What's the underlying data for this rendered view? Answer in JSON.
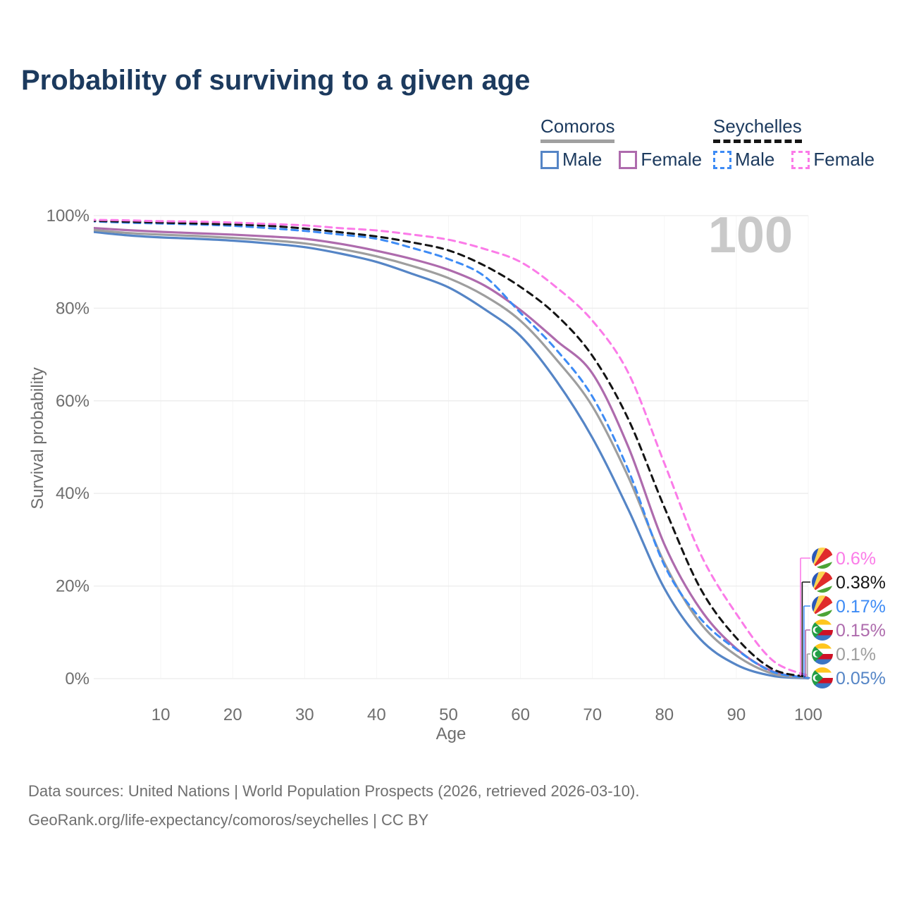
{
  "title": "Probability of surviving to a given age",
  "watermark_age": "100",
  "legend": {
    "groups": [
      {
        "country": "Comoros",
        "line_style": "solid",
        "underline_color": "#a0a0a0",
        "items": [
          {
            "label": "Male",
            "color": "#5585c6",
            "dashed": false
          },
          {
            "label": "Female",
            "color": "#ae6bad",
            "dashed": false
          }
        ]
      },
      {
        "country": "Seychelles",
        "line_style": "dashed",
        "underline_color": "#151515",
        "items": [
          {
            "label": "Male",
            "color": "#3d8bf5",
            "dashed": true
          },
          {
            "label": "Female",
            "color": "#fb7be8",
            "dashed": true
          }
        ]
      }
    ]
  },
  "chart_data": {
    "type": "line",
    "title": "Probability of surviving to a given age",
    "xlabel": "Age",
    "ylabel": "Survival probability",
    "xlim": [
      0,
      100
    ],
    "ylim": [
      0,
      100
    ],
    "grid": true,
    "legend_position": "top-right",
    "x_ticks": [
      10,
      20,
      30,
      40,
      50,
      60,
      70,
      80,
      90,
      100
    ],
    "y_ticks": [
      {
        "value": 0,
        "label": "0%"
      },
      {
        "value": 20,
        "label": "20%"
      },
      {
        "value": 40,
        "label": "40%"
      },
      {
        "value": 60,
        "label": "60%"
      },
      {
        "value": 80,
        "label": "80%"
      },
      {
        "value": 100,
        "label": "100%"
      }
    ],
    "x": [
      0,
      5,
      10,
      15,
      20,
      25,
      30,
      35,
      40,
      45,
      50,
      55,
      60,
      65,
      70,
      75,
      80,
      85,
      90,
      95,
      100
    ],
    "series": [
      {
        "name": "Comoros Male",
        "country": "Comoros",
        "sex": "Male",
        "flag": "comoros",
        "color": "#5585c6",
        "dashed": false,
        "end_label": "0.05%",
        "values": [
          96.6,
          95.8,
          95.3,
          95.0,
          94.6,
          94.0,
          93.2,
          91.8,
          90.0,
          87.4,
          84.5,
          79.8,
          74.0,
          64.3,
          52.0,
          36.5,
          19.5,
          8.5,
          3.0,
          0.6,
          0.05
        ]
      },
      {
        "name": "Comoros Female",
        "country": "Comoros",
        "sex": "Female",
        "flag": "comoros",
        "color": "#ae6bad",
        "dashed": false,
        "end_label": "0.15%",
        "values": [
          97.4,
          96.9,
          96.5,
          96.2,
          95.9,
          95.5,
          95.0,
          93.9,
          92.4,
          90.6,
          88.3,
          84.9,
          79.6,
          73.0,
          65.9,
          50.0,
          29.0,
          15.0,
          6.5,
          1.6,
          0.15
        ]
      },
      {
        "name": "Comoros Both sexes",
        "country": "Comoros",
        "sex": "Both",
        "flag": "comoros",
        "color": "#9e9e9e",
        "dashed": false,
        "end_label": "0.1%",
        "values": [
          97.0,
          96.3,
          95.9,
          95.6,
          95.2,
          94.7,
          94.0,
          92.8,
          91.2,
          89.1,
          86.5,
          82.7,
          77.3,
          68.9,
          58.8,
          43.5,
          25.0,
          12.0,
          5.0,
          1.1,
          0.1
        ]
      },
      {
        "name": "Seychelles Male",
        "country": "Seychelles",
        "sex": "Male",
        "flag": "seychelles",
        "color": "#3d8bf5",
        "dashed": true,
        "end_label": "0.17%",
        "values": [
          98.8,
          98.5,
          98.3,
          98.1,
          97.8,
          97.3,
          96.7,
          95.9,
          95.0,
          93.0,
          90.6,
          86.9,
          79.0,
          71.0,
          60.9,
          45.0,
          24.5,
          13.0,
          6.3,
          1.5,
          0.17
        ]
      },
      {
        "name": "Seychelles Both sexes",
        "country": "Seychelles",
        "sex": "Both",
        "flag": "seychelles",
        "color": "#141414",
        "dashed": true,
        "end_label": "0.38%",
        "values": [
          98.9,
          98.7,
          98.5,
          98.3,
          98.1,
          97.8,
          97.2,
          96.4,
          95.5,
          94.2,
          92.5,
          89.2,
          84.6,
          78.5,
          69.7,
          56.0,
          37.0,
          19.5,
          8.8,
          2.1,
          0.38
        ]
      },
      {
        "name": "Seychelles Female",
        "country": "Seychelles",
        "sex": "Female",
        "flag": "seychelles",
        "color": "#fb7be8",
        "dashed": true,
        "end_label": "0.6%",
        "values": [
          99.1,
          99.0,
          98.8,
          98.7,
          98.5,
          98.2,
          97.9,
          97.3,
          96.8,
          95.9,
          94.8,
          92.8,
          90.0,
          84.5,
          77.3,
          66.0,
          46.5,
          27.0,
          14.0,
          4.0,
          0.6
        ]
      }
    ]
  },
  "footer": {
    "line1": "Data sources: United Nations | World Population Prospects (2026, retrieved 2026-03-10).",
    "line2": "GeoRank.org/life-expectancy/comoros/seychelles | CC BY"
  }
}
